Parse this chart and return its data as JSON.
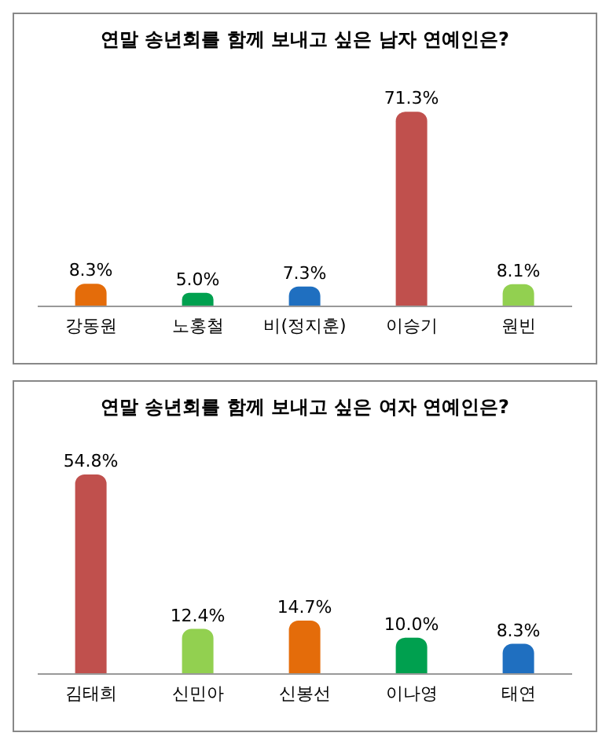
{
  "chart_data": [
    {
      "type": "bar",
      "title": "연말 송년회를 함께 보내고 싶은 남자 연예인은?",
      "categories": [
        "강동원",
        "노홍철",
        "비(정지훈)",
        "이승기",
        "원빈"
      ],
      "values": [
        8.3,
        5.0,
        7.3,
        71.3,
        8.1
      ],
      "colors": [
        "#e46c0a",
        "#00a04f",
        "#1f6fc0",
        "#c0504d",
        "#92d050"
      ],
      "value_labels": [
        "8.3%",
        "5.0%",
        "7.3%",
        "71.3%",
        "8.1%"
      ]
    },
    {
      "type": "bar",
      "title": "연말 송년회를 함께 보내고 싶은 여자 연예인은?",
      "categories": [
        "김태희",
        "신민아",
        "신봉선",
        "이나영",
        "태연"
      ],
      "values": [
        54.8,
        12.4,
        14.7,
        10.0,
        8.3
      ],
      "colors": [
        "#c0504d",
        "#92d050",
        "#e46c0a",
        "#00a04f",
        "#1f6fc0"
      ],
      "value_labels": [
        "54.8%",
        "12.4%",
        "14.7%",
        "10.0%",
        "8.3%"
      ]
    }
  ]
}
